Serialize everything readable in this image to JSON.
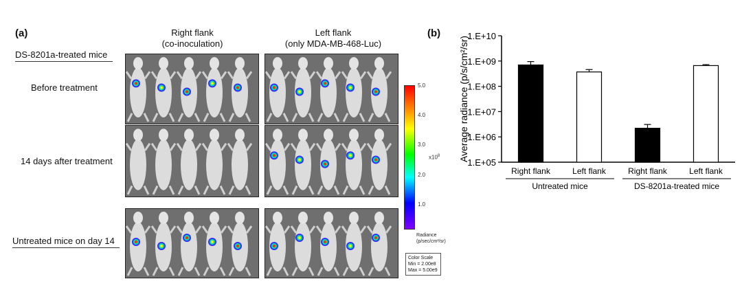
{
  "panel_a": {
    "label": "(a)",
    "columns": [
      "Right flank\n(co-inoculation)",
      "Left flank\n(only MDA-MB-468-Luc)"
    ],
    "col_right_line1": "Right flank",
    "col_right_line2": "(co-inoculation)",
    "col_left_line1": "Left flank",
    "col_left_line2": "(only MDA-MB-468-Luc)",
    "group_label": "DS-8201a-treated mice",
    "rows": [
      "Before treatment",
      "14 days after treatment",
      "Untreated mice on day 14"
    ],
    "colorbar": {
      "ticks": [
        "5.0",
        "4.0",
        "3.0",
        "2.0",
        "1.0"
      ],
      "exponent": "x10",
      "exponent_power": "8",
      "title_line1": "Radiance",
      "title_line2": "(p/sec/cm²/sr)",
      "scale_title": "Color Scale",
      "scale_min": "Min = 2.00e8",
      "scale_max": "Max = 5.00e9",
      "colors": [
        "#ff0000",
        "#ff7f00",
        "#ffff00",
        "#00ff00",
        "#00ffff",
        "#0000ff",
        "#8000ff"
      ]
    }
  },
  "chart_data": {
    "type": "bar",
    "label": "(b)",
    "title": "",
    "ylabel": "Average radiance (p/s/cm²/sr)",
    "yscale": "log",
    "ylim": [
      100000,
      10000000000
    ],
    "yticks": [
      "1.E+05",
      "1.E+06",
      "1.E+07",
      "1.E+08",
      "1.E+09",
      "1.E+10"
    ],
    "ytick_values": [
      100000,
      1000000,
      10000000,
      100000000,
      1000000000,
      10000000000
    ],
    "categories": [
      "Right flank",
      "Left flank",
      "Right flank",
      "Left flank"
    ],
    "groups": [
      "Untreated mice",
      "DS-8201a-treated mice"
    ],
    "values": [
      700000000,
      370000000,
      2200000,
      660000000
    ],
    "errors": [
      250000000,
      90000000,
      900000,
      60000000
    ],
    "bar_fill": [
      "#000000",
      "#ffffff",
      "#000000",
      "#ffffff"
    ]
  }
}
